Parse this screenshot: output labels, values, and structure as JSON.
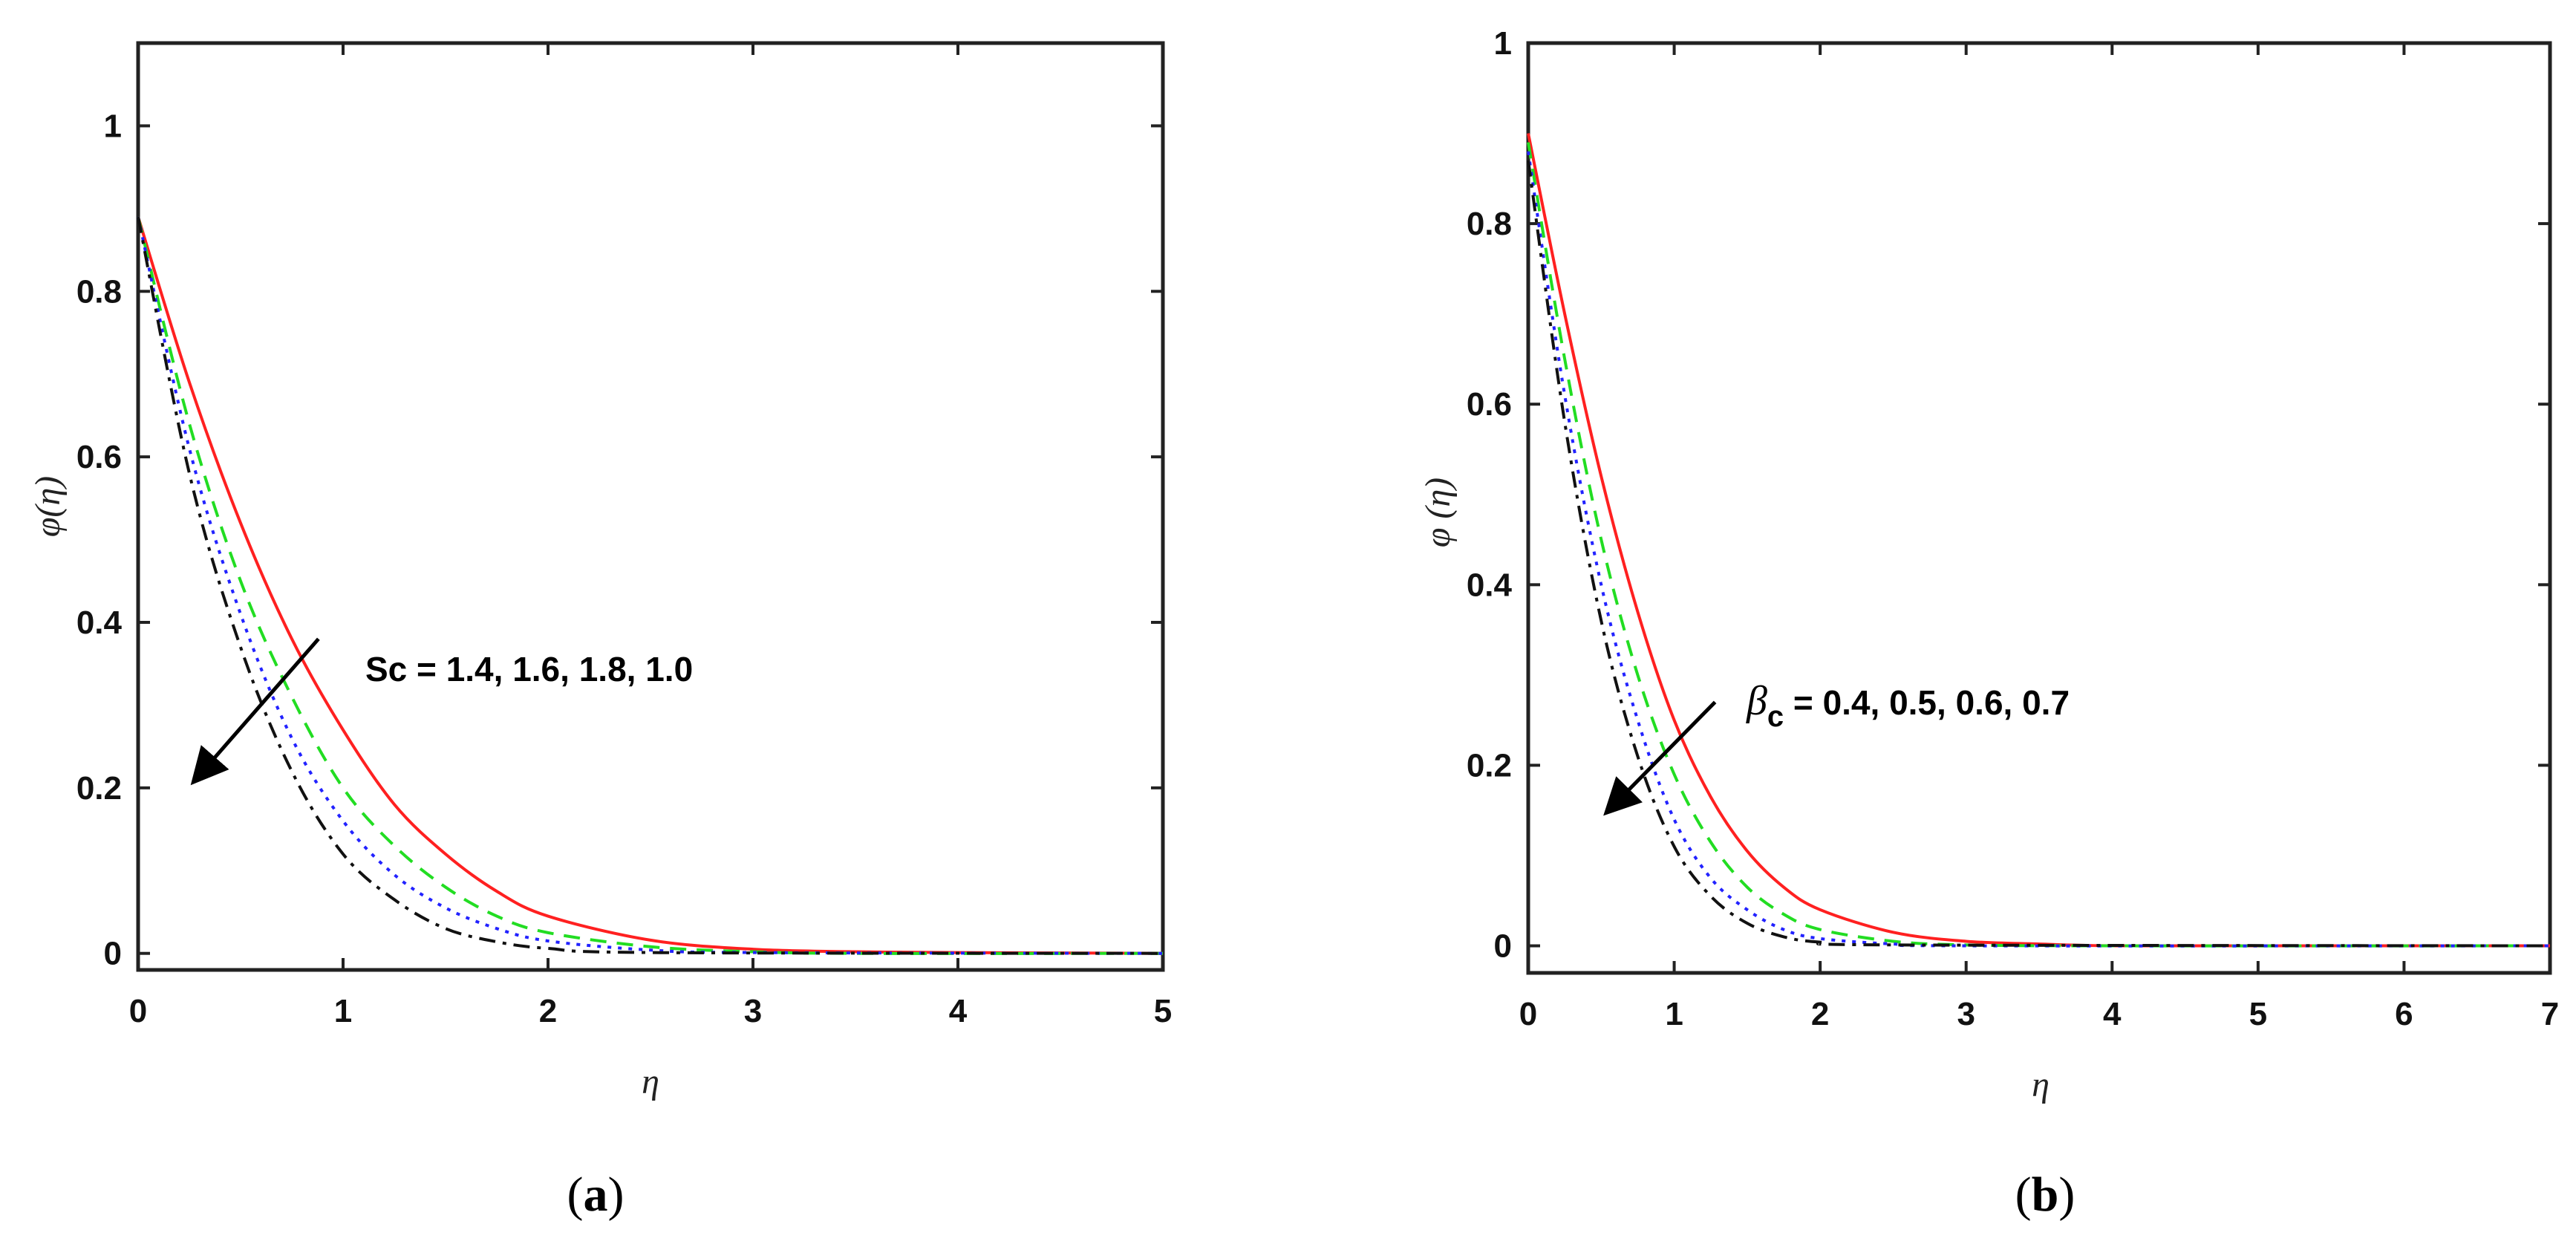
{
  "chart_data": [
    {
      "type": "line",
      "panel": "a",
      "caption": {
        "open": "(",
        "letter": "a",
        "close": ")"
      },
      "xlabel": "η",
      "ylabel": "φ(η)",
      "xlim": [
        0,
        5
      ],
      "ylim": [
        -0.02,
        1.1
      ],
      "xticks": [
        0,
        1,
        2,
        3,
        4,
        5
      ],
      "yticks": [
        0,
        0.2,
        0.4,
        0.6,
        0.8,
        1
      ],
      "ytick_labels": [
        "0",
        "0.2",
        "0.4",
        "0.6",
        "0.8",
        "1"
      ],
      "grid": false,
      "annotation": {
        "text": "Sc = 1.4, 1.6, 1.8, 1.0",
        "arrow_from": [
          0.88,
          0.38
        ],
        "arrow_to": [
          0.28,
          0.21
        ]
      },
      "series": [
        {
          "style": "solid",
          "color": "#ff2020",
          "x": [
            0,
            0.25,
            0.5,
            0.75,
            1.0,
            1.25,
            1.5,
            1.75,
            2.0,
            2.5,
            3.0,
            3.5,
            4.0,
            5.0
          ],
          "values": [
            0.89,
            0.69,
            0.52,
            0.38,
            0.27,
            0.18,
            0.12,
            0.075,
            0.045,
            0.016,
            0.005,
            0.002,
            0.001,
            0.0
          ]
        },
        {
          "style": "dashed",
          "color": "#22dd22",
          "x": [
            0,
            0.25,
            0.5,
            0.75,
            1.0,
            1.25,
            1.5,
            1.75,
            2.0,
            2.5,
            3.0,
            3.5,
            5.0
          ],
          "values": [
            0.89,
            0.64,
            0.45,
            0.31,
            0.2,
            0.13,
            0.08,
            0.045,
            0.025,
            0.008,
            0.002,
            0.0,
            0.0
          ]
        },
        {
          "style": "dotted",
          "color": "#2222ff",
          "x": [
            0,
            0.25,
            0.5,
            0.75,
            1.0,
            1.25,
            1.5,
            1.75,
            2.0,
            2.5,
            3.0,
            5.0
          ],
          "values": [
            0.89,
            0.61,
            0.41,
            0.26,
            0.16,
            0.095,
            0.055,
            0.03,
            0.015,
            0.004,
            0.001,
            0.0
          ]
        },
        {
          "style": "dashdot",
          "color": "#111111",
          "x": [
            0,
            0.25,
            0.5,
            0.75,
            1.0,
            1.25,
            1.5,
            1.75,
            2.0,
            2.5,
            5.0
          ],
          "values": [
            0.89,
            0.58,
            0.37,
            0.22,
            0.12,
            0.065,
            0.03,
            0.014,
            0.006,
            0.001,
            0.0
          ]
        }
      ]
    },
    {
      "type": "line",
      "panel": "b",
      "caption": {
        "open": "(",
        "letter": "b",
        "close": ")"
      },
      "xlabel": "η",
      "ylabel": "φ (η)",
      "xlim": [
        0,
        7
      ],
      "ylim": [
        -0.03,
        1.0
      ],
      "xticks": [
        0,
        1,
        2,
        3,
        4,
        5,
        6,
        7
      ],
      "yticks": [
        0,
        0.2,
        0.4,
        0.6,
        0.8,
        1
      ],
      "ytick_labels": [
        "0",
        "0.2",
        "0.4",
        "0.6",
        "0.8",
        "1"
      ],
      "grid": false,
      "annotation": {
        "text_symbol": "β",
        "text_sub": "c",
        "text_rest": " = 0.4, 0.5, 0.6, 0.7",
        "arrow_from": [
          1.28,
          0.27
        ],
        "arrow_to": [
          0.55,
          0.15
        ]
      },
      "series": [
        {
          "style": "solid",
          "color": "#ff2020",
          "x": [
            0,
            0.25,
            0.5,
            0.75,
            1.0,
            1.25,
            1.5,
            1.75,
            2.0,
            2.5,
            3.0,
            3.5,
            4.0,
            5.0,
            7.0
          ],
          "values": [
            0.9,
            0.7,
            0.52,
            0.37,
            0.25,
            0.165,
            0.105,
            0.065,
            0.04,
            0.015,
            0.005,
            0.002,
            0.0,
            0.0,
            0.0
          ]
        },
        {
          "style": "dashed",
          "color": "#22dd22",
          "x": [
            0,
            0.25,
            0.5,
            0.75,
            1.0,
            1.25,
            1.5,
            1.75,
            2.0,
            2.5,
            3.0,
            4.0,
            7.0
          ],
          "values": [
            0.89,
            0.65,
            0.45,
            0.3,
            0.19,
            0.115,
            0.065,
            0.035,
            0.018,
            0.005,
            0.001,
            0.0,
            0.0
          ]
        },
        {
          "style": "dotted",
          "color": "#2222ff",
          "x": [
            0,
            0.25,
            0.5,
            0.75,
            1.0,
            1.25,
            1.5,
            1.75,
            2.0,
            2.5,
            3.0,
            7.0
          ],
          "values": [
            0.88,
            0.61,
            0.4,
            0.25,
            0.14,
            0.075,
            0.04,
            0.018,
            0.008,
            0.002,
            0.0,
            0.0
          ]
        },
        {
          "style": "dashdot",
          "color": "#111111",
          "x": [
            0,
            0.25,
            0.5,
            0.75,
            1.0,
            1.25,
            1.5,
            1.75,
            2.0,
            2.5,
            7.0
          ],
          "values": [
            0.87,
            0.58,
            0.36,
            0.21,
            0.11,
            0.055,
            0.025,
            0.01,
            0.004,
            0.001,
            0.0
          ]
        }
      ]
    }
  ]
}
